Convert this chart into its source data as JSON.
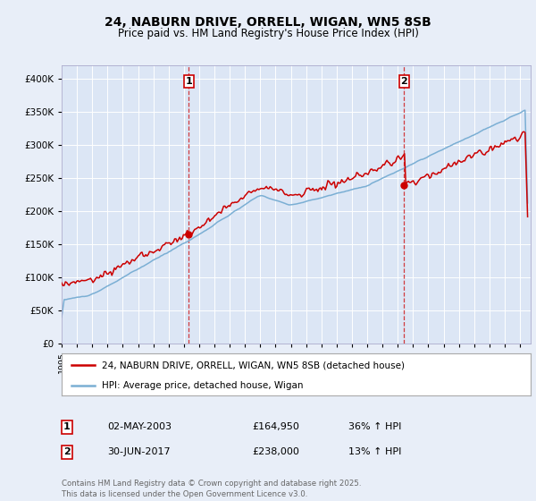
{
  "title1": "24, NABURN DRIVE, ORRELL, WIGAN, WN5 8SB",
  "title2": "Price paid vs. HM Land Registry's House Price Index (HPI)",
  "bg_color": "#e8eef8",
  "plot_bg_color": "#dce6f5",
  "grid_color": "#ffffff",
  "red_color": "#cc0000",
  "blue_color": "#7bafd4",
  "sale1_t": 2003.33,
  "sale1_price": 164950,
  "sale2_t": 2017.42,
  "sale2_price": 238000,
  "legend_label_red": "24, NABURN DRIVE, ORRELL, WIGAN, WN5 8SB (detached house)",
  "legend_label_blue": "HPI: Average price, detached house, Wigan",
  "table_row1": [
    "1",
    "02-MAY-2003",
    "£164,950",
    "36% ↑ HPI"
  ],
  "table_row2": [
    "2",
    "30-JUN-2017",
    "£238,000",
    "13% ↑ HPI"
  ],
  "footnote": "Contains HM Land Registry data © Crown copyright and database right 2025.\nThis data is licensed under the Open Government Licence v3.0.",
  "yticks": [
    0,
    50000,
    100000,
    150000,
    200000,
    250000,
    300000,
    350000,
    400000
  ],
  "xstart": 1995.0,
  "xend": 2025.7
}
